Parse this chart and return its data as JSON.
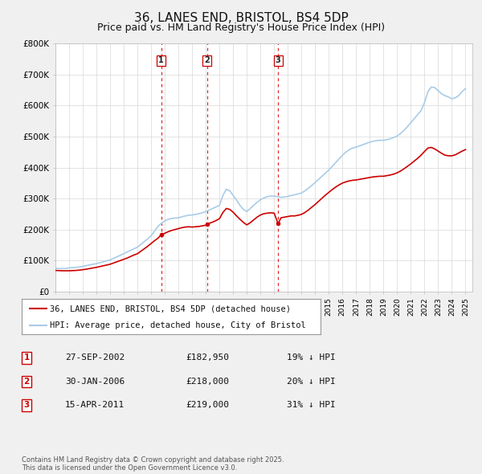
{
  "title": "36, LANES END, BRISTOL, BS4 5DP",
  "subtitle": "Price paid vs. HM Land Registry's House Price Index (HPI)",
  "title_fontsize": 11,
  "subtitle_fontsize": 9,
  "background_color": "#f0f0f0",
  "plot_background": "#ffffff",
  "hpi_color": "#a8cce8",
  "price_color": "#cc0000",
  "ylim": [
    0,
    800000
  ],
  "yticks": [
    0,
    100000,
    200000,
    300000,
    400000,
    500000,
    600000,
    700000,
    800000
  ],
  "ytick_labels": [
    "£0",
    "£100K",
    "£200K",
    "£300K",
    "£400K",
    "£500K",
    "£600K",
    "£700K",
    "£800K"
  ],
  "transactions": [
    {
      "num": 1,
      "date_label": "27-SEP-2002",
      "date_x": 2002.74,
      "price": 182950,
      "pct": "19%",
      "direction": "↓"
    },
    {
      "num": 2,
      "date_label": "30-JAN-2006",
      "date_x": 2006.08,
      "price": 218000,
      "pct": "20%",
      "direction": "↓"
    },
    {
      "num": 3,
      "date_label": "15-APR-2011",
      "date_x": 2011.29,
      "price": 219000,
      "pct": "31%",
      "direction": "↓"
    }
  ],
  "legend_line1": "36, LANES END, BRISTOL, BS4 5DP (detached house)",
  "legend_line2": "HPI: Average price, detached house, City of Bristol",
  "footnote": "Contains HM Land Registry data © Crown copyright and database right 2025.\nThis data is licensed under the Open Government Licence v3.0.",
  "xmin": 1995,
  "xmax": 2025.5,
  "hpi_data": [
    [
      1995.0,
      75000
    ],
    [
      1995.25,
      74500
    ],
    [
      1995.5,
      74000
    ],
    [
      1995.75,
      74500
    ],
    [
      1996.0,
      76000
    ],
    [
      1996.25,
      77000
    ],
    [
      1996.5,
      78000
    ],
    [
      1996.75,
      79000
    ],
    [
      1997.0,
      81000
    ],
    [
      1997.25,
      83500
    ],
    [
      1997.5,
      86000
    ],
    [
      1997.75,
      88000
    ],
    [
      1998.0,
      90000
    ],
    [
      1998.25,
      93000
    ],
    [
      1998.5,
      96000
    ],
    [
      1998.75,
      99000
    ],
    [
      1999.0,
      102000
    ],
    [
      1999.25,
      107000
    ],
    [
      1999.5,
      112000
    ],
    [
      1999.75,
      117000
    ],
    [
      2000.0,
      122000
    ],
    [
      2000.25,
      128000
    ],
    [
      2000.5,
      133000
    ],
    [
      2000.75,
      138000
    ],
    [
      2001.0,
      143000
    ],
    [
      2001.25,
      152000
    ],
    [
      2001.5,
      161000
    ],
    [
      2001.75,
      170000
    ],
    [
      2002.0,
      180000
    ],
    [
      2002.25,
      195000
    ],
    [
      2002.5,
      210000
    ],
    [
      2002.75,
      220000
    ],
    [
      2003.0,
      228000
    ],
    [
      2003.25,
      233000
    ],
    [
      2003.5,
      236000
    ],
    [
      2003.75,
      237000
    ],
    [
      2004.0,
      238000
    ],
    [
      2004.25,
      241000
    ],
    [
      2004.5,
      244000
    ],
    [
      2004.75,
      246000
    ],
    [
      2005.0,
      247000
    ],
    [
      2005.25,
      249000
    ],
    [
      2005.5,
      251000
    ],
    [
      2005.75,
      254000
    ],
    [
      2006.0,
      258000
    ],
    [
      2006.25,
      263000
    ],
    [
      2006.5,
      268000
    ],
    [
      2006.75,
      273000
    ],
    [
      2007.0,
      278000
    ],
    [
      2007.25,
      310000
    ],
    [
      2007.5,
      330000
    ],
    [
      2007.75,
      325000
    ],
    [
      2008.0,
      310000
    ],
    [
      2008.25,
      295000
    ],
    [
      2008.5,
      278000
    ],
    [
      2008.75,
      265000
    ],
    [
      2009.0,
      258000
    ],
    [
      2009.25,
      268000
    ],
    [
      2009.5,
      278000
    ],
    [
      2009.75,
      288000
    ],
    [
      2010.0,
      296000
    ],
    [
      2010.25,
      302000
    ],
    [
      2010.5,
      306000
    ],
    [
      2010.75,
      308000
    ],
    [
      2011.0,
      308000
    ],
    [
      2011.25,
      306000
    ],
    [
      2011.5,
      304000
    ],
    [
      2011.75,
      305000
    ],
    [
      2012.0,
      307000
    ],
    [
      2012.25,
      310000
    ],
    [
      2012.5,
      312000
    ],
    [
      2012.75,
      315000
    ],
    [
      2013.0,
      318000
    ],
    [
      2013.25,
      325000
    ],
    [
      2013.5,
      333000
    ],
    [
      2013.75,
      342000
    ],
    [
      2014.0,
      352000
    ],
    [
      2014.25,
      362000
    ],
    [
      2014.5,
      372000
    ],
    [
      2014.75,
      382000
    ],
    [
      2015.0,
      392000
    ],
    [
      2015.25,
      404000
    ],
    [
      2015.5,
      416000
    ],
    [
      2015.75,
      428000
    ],
    [
      2016.0,
      440000
    ],
    [
      2016.25,
      450000
    ],
    [
      2016.5,
      458000
    ],
    [
      2016.75,
      463000
    ],
    [
      2017.0,
      466000
    ],
    [
      2017.25,
      470000
    ],
    [
      2017.5,
      474000
    ],
    [
      2017.75,
      478000
    ],
    [
      2018.0,
      482000
    ],
    [
      2018.25,
      485000
    ],
    [
      2018.5,
      487000
    ],
    [
      2018.75,
      488000
    ],
    [
      2019.0,
      488000
    ],
    [
      2019.25,
      490000
    ],
    [
      2019.5,
      493000
    ],
    [
      2019.75,
      497000
    ],
    [
      2020.0,
      502000
    ],
    [
      2020.25,
      510000
    ],
    [
      2020.5,
      520000
    ],
    [
      2020.75,
      532000
    ],
    [
      2021.0,
      545000
    ],
    [
      2021.25,
      558000
    ],
    [
      2021.5,
      571000
    ],
    [
      2021.75,
      584000
    ],
    [
      2022.0,
      610000
    ],
    [
      2022.25,
      645000
    ],
    [
      2022.5,
      660000
    ],
    [
      2022.75,
      658000
    ],
    [
      2023.0,
      648000
    ],
    [
      2023.25,
      638000
    ],
    [
      2023.5,
      632000
    ],
    [
      2023.75,
      628000
    ],
    [
      2024.0,
      622000
    ],
    [
      2024.25,
      625000
    ],
    [
      2024.5,
      632000
    ],
    [
      2024.75,
      645000
    ],
    [
      2025.0,
      655000
    ]
  ],
  "price_data": [
    [
      1995.0,
      68000
    ],
    [
      1995.25,
      67500
    ],
    [
      1995.5,
      67000
    ],
    [
      1995.75,
      67000
    ],
    [
      1996.0,
      67000
    ],
    [
      1996.25,
      67500
    ],
    [
      1996.5,
      68000
    ],
    [
      1996.75,
      69000
    ],
    [
      1997.0,
      70500
    ],
    [
      1997.25,
      72000
    ],
    [
      1997.5,
      74000
    ],
    [
      1997.75,
      76000
    ],
    [
      1998.0,
      78000
    ],
    [
      1998.25,
      80500
    ],
    [
      1998.5,
      83000
    ],
    [
      1998.75,
      85500
    ],
    [
      1999.0,
      88000
    ],
    [
      1999.25,
      92000
    ],
    [
      1999.5,
      96000
    ],
    [
      1999.75,
      100000
    ],
    [
      2000.0,
      104000
    ],
    [
      2000.25,
      108000
    ],
    [
      2000.5,
      113000
    ],
    [
      2000.75,
      118000
    ],
    [
      2001.0,
      122000
    ],
    [
      2001.25,
      130000
    ],
    [
      2001.5,
      138000
    ],
    [
      2001.75,
      146000
    ],
    [
      2002.0,
      155000
    ],
    [
      2002.25,
      164000
    ],
    [
      2002.5,
      172000
    ],
    [
      2002.74,
      182950
    ],
    [
      2003.0,
      188000
    ],
    [
      2003.25,
      193000
    ],
    [
      2003.5,
      197000
    ],
    [
      2003.75,
      200000
    ],
    [
      2004.0,
      203000
    ],
    [
      2004.25,
      206000
    ],
    [
      2004.5,
      208000
    ],
    [
      2004.75,
      209000
    ],
    [
      2005.0,
      208000
    ],
    [
      2005.25,
      209000
    ],
    [
      2005.5,
      210000
    ],
    [
      2005.75,
      212000
    ],
    [
      2006.0,
      214000
    ],
    [
      2006.08,
      218000
    ],
    [
      2006.25,
      220000
    ],
    [
      2006.5,
      224000
    ],
    [
      2006.75,
      229000
    ],
    [
      2007.0,
      235000
    ],
    [
      2007.25,
      255000
    ],
    [
      2007.5,
      268000
    ],
    [
      2007.75,
      265000
    ],
    [
      2008.0,
      256000
    ],
    [
      2008.25,
      244000
    ],
    [
      2008.5,
      233000
    ],
    [
      2008.75,
      223000
    ],
    [
      2009.0,
      215000
    ],
    [
      2009.25,
      222000
    ],
    [
      2009.5,
      231000
    ],
    [
      2009.75,
      240000
    ],
    [
      2010.0,
      247000
    ],
    [
      2010.25,
      251000
    ],
    [
      2010.5,
      253000
    ],
    [
      2010.75,
      254000
    ],
    [
      2011.0,
      253000
    ],
    [
      2011.29,
      219000
    ],
    [
      2011.5,
      238000
    ],
    [
      2011.75,
      240000
    ],
    [
      2012.0,
      242000
    ],
    [
      2012.25,
      244000
    ],
    [
      2012.5,
      244000
    ],
    [
      2012.75,
      246000
    ],
    [
      2013.0,
      249000
    ],
    [
      2013.25,
      255000
    ],
    [
      2013.5,
      263000
    ],
    [
      2013.75,
      272000
    ],
    [
      2014.0,
      281000
    ],
    [
      2014.25,
      291000
    ],
    [
      2014.5,
      301000
    ],
    [
      2014.75,
      311000
    ],
    [
      2015.0,
      320000
    ],
    [
      2015.25,
      329000
    ],
    [
      2015.5,
      337000
    ],
    [
      2015.75,
      344000
    ],
    [
      2016.0,
      350000
    ],
    [
      2016.25,
      354000
    ],
    [
      2016.5,
      357000
    ],
    [
      2016.75,
      359000
    ],
    [
      2017.0,
      360000
    ],
    [
      2017.25,
      362000
    ],
    [
      2017.5,
      364000
    ],
    [
      2017.75,
      366000
    ],
    [
      2018.0,
      368000
    ],
    [
      2018.25,
      370000
    ],
    [
      2018.5,
      371000
    ],
    [
      2018.75,
      372000
    ],
    [
      2019.0,
      372000
    ],
    [
      2019.25,
      374000
    ],
    [
      2019.5,
      376000
    ],
    [
      2019.75,
      379000
    ],
    [
      2020.0,
      383000
    ],
    [
      2020.25,
      389000
    ],
    [
      2020.5,
      396000
    ],
    [
      2020.75,
      404000
    ],
    [
      2021.0,
      412000
    ],
    [
      2021.25,
      421000
    ],
    [
      2021.5,
      430000
    ],
    [
      2021.75,
      440000
    ],
    [
      2022.0,
      452000
    ],
    [
      2022.25,
      463000
    ],
    [
      2022.5,
      465000
    ],
    [
      2022.75,
      460000
    ],
    [
      2023.0,
      453000
    ],
    [
      2023.25,
      446000
    ],
    [
      2023.5,
      440000
    ],
    [
      2023.75,
      438000
    ],
    [
      2024.0,
      438000
    ],
    [
      2024.25,
      441000
    ],
    [
      2024.5,
      447000
    ],
    [
      2024.75,
      453000
    ],
    [
      2025.0,
      458000
    ]
  ]
}
